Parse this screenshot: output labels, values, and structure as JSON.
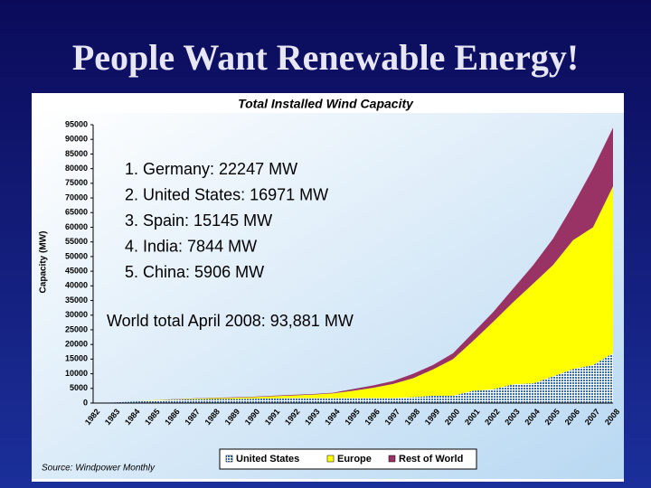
{
  "slide_title": "People Want Renewable Energy!",
  "chart_data": {
    "type": "stacked_area",
    "title": "Total Installed Wind Capacity",
    "y_label": "Capacity (MW)",
    "categories": [
      "1982",
      "1983",
      "1984",
      "1985",
      "1986",
      "1987",
      "1988",
      "1989",
      "1990",
      "1991",
      "1992",
      "1993",
      "1994",
      "1995",
      "1996",
      "1997",
      "1998",
      "1999",
      "2000",
      "2001",
      "2002",
      "2003",
      "2004",
      "2005",
      "2006",
      "2007",
      "2008"
    ],
    "series": [
      {
        "name": "United States",
        "color": "#3d6fb6",
        "values": [
          0,
          200,
          500,
          900,
          1100,
          1300,
          1400,
          1400,
          1500,
          1600,
          1700,
          1700,
          1700,
          1700,
          1700,
          1700,
          2000,
          2500,
          2500,
          4200,
          4700,
          6400,
          6700,
          9100,
          11600,
          13000,
          17000
        ]
      },
      {
        "name": "Europe",
        "color": "#ffff00",
        "values": [
          0,
          0,
          0,
          100,
          150,
          200,
          300,
          400,
          500,
          700,
          900,
          1200,
          1600,
          2500,
          3500,
          4800,
          6500,
          9000,
          12500,
          17000,
          23000,
          28000,
          34000,
          38000,
          44000,
          47000,
          57000
        ]
      },
      {
        "name": "Rest of World",
        "color": "#993366",
        "values": [
          0,
          0,
          0,
          0,
          50,
          100,
          100,
          150,
          150,
          200,
          200,
          200,
          200,
          600,
          800,
          1000,
          1500,
          1500,
          2000,
          2800,
          3300,
          4600,
          6300,
          9000,
          12000,
          20000,
          20000
        ]
      }
    ],
    "ylim": [
      0,
      95000
    ],
    "yticks": [
      0,
      5000,
      10000,
      15000,
      20000,
      25000,
      30000,
      35000,
      40000,
      45000,
      50000,
      55000,
      60000,
      65000,
      70000,
      75000,
      80000,
      85000,
      90000,
      95000
    ],
    "grid": false,
    "legend": "bottom",
    "annotations": [
      "1. Germany: 22247 MW",
      "2. United States: 16971 MW",
      "3. Spain: 15145 MW",
      "4. India: 7844 MW",
      "5. China:  5906 MW"
    ],
    "total_note": "World total April 2008: 93,881 MW",
    "source": "Source: Windpower Monthly"
  }
}
